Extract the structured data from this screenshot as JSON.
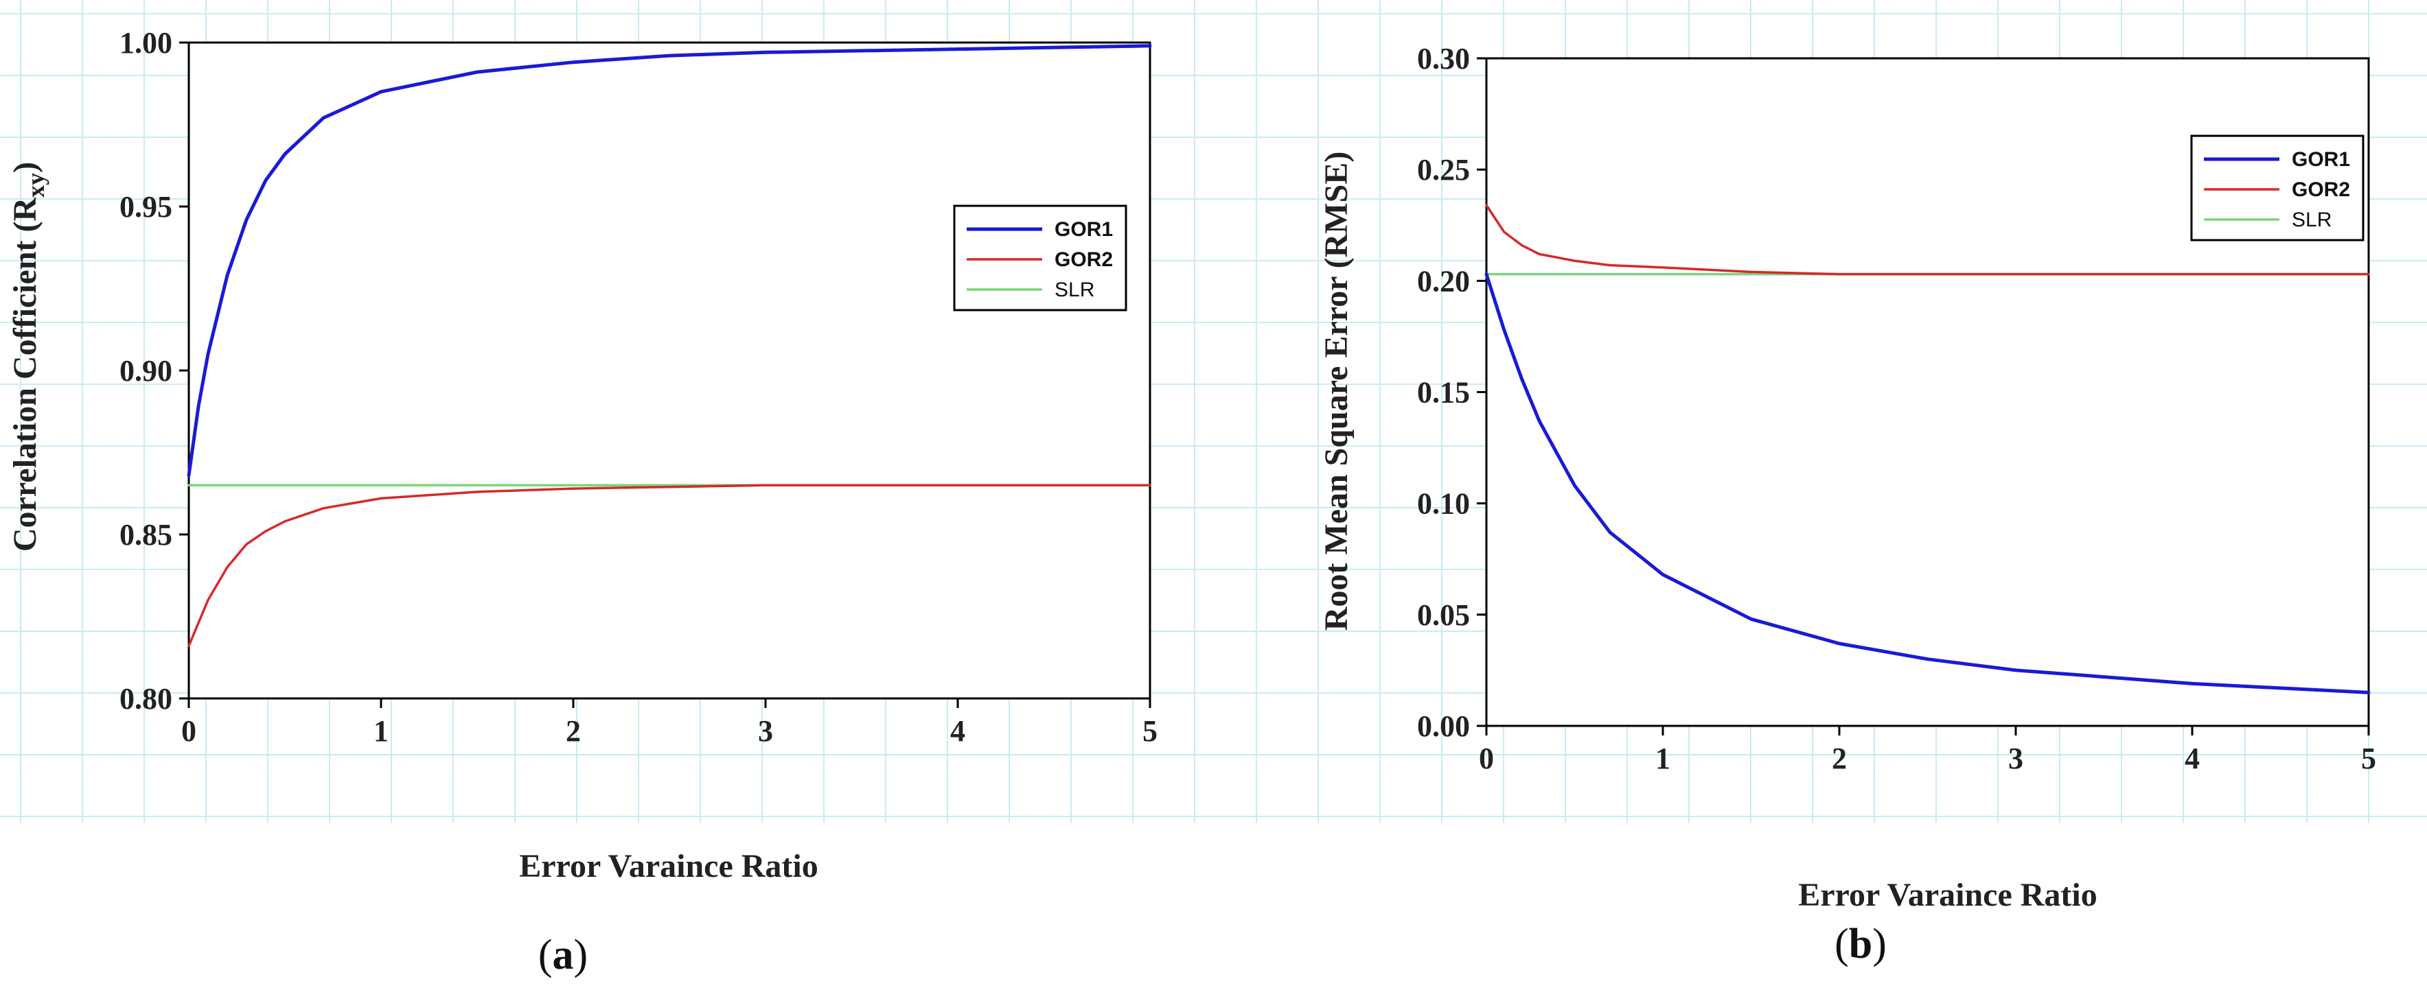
{
  "colors": {
    "gor1": "#1a1ad6",
    "gor2": "#d42a2a",
    "slr": "#7ad67a",
    "grid": "#c9ecf4",
    "axis": "#000000"
  },
  "chart_data": [
    {
      "type": "line",
      "panel_label": "a",
      "title": "",
      "xlabel": "Error Varaince Ratio",
      "ylabel": "Correlation Cofficient (R",
      "ylabel_sub": "xy",
      "ylabel_close": ")",
      "xlim": [
        0,
        5
      ],
      "ylim": [
        0.8,
        1.0
      ],
      "x_ticks": [
        "0",
        "1",
        "2",
        "3",
        "4",
        "5"
      ],
      "y_ticks": [
        "0.80",
        "0.85",
        "0.90",
        "0.95",
        "1.00"
      ],
      "legend_position": "top-right",
      "series": [
        {
          "name": "GOR1",
          "color_key": "gor1",
          "x": [
            0,
            0.05,
            0.1,
            0.2,
            0.3,
            0.4,
            0.5,
            0.7,
            1.0,
            1.5,
            2.0,
            2.5,
            3.0,
            4.0,
            5.0
          ],
          "y": [
            0.868,
            0.889,
            0.905,
            0.929,
            0.946,
            0.958,
            0.966,
            0.977,
            0.985,
            0.991,
            0.994,
            0.996,
            0.997,
            0.998,
            0.999
          ]
        },
        {
          "name": "GOR2",
          "color_key": "gor2",
          "x": [
            0,
            0.1,
            0.2,
            0.3,
            0.4,
            0.5,
            0.7,
            1.0,
            1.5,
            2.0,
            3.0,
            4.0,
            5.0
          ],
          "y": [
            0.816,
            0.83,
            0.84,
            0.847,
            0.851,
            0.854,
            0.858,
            0.861,
            0.863,
            0.864,
            0.865,
            0.865,
            0.865
          ]
        },
        {
          "name": "SLR",
          "color_key": "slr",
          "x": [
            0,
            5
          ],
          "y": [
            0.865,
            0.865
          ]
        }
      ]
    },
    {
      "type": "line",
      "panel_label": "b",
      "title": "",
      "xlabel": "Error Varaince Ratio",
      "ylabel": "Root Mean Square Error (RMSE)",
      "xlim": [
        0,
        5
      ],
      "ylim": [
        0.0,
        0.3
      ],
      "x_ticks": [
        "0",
        "1",
        "2",
        "3",
        "4",
        "5"
      ],
      "y_ticks": [
        "0.00",
        "0.05",
        "0.10",
        "0.15",
        "0.20",
        "0.25",
        "0.30"
      ],
      "legend_position": "top-right",
      "series": [
        {
          "name": "GOR1",
          "color_key": "gor1",
          "x": [
            0,
            0.1,
            0.2,
            0.3,
            0.5,
            0.7,
            1.0,
            1.5,
            2.0,
            2.5,
            3.0,
            3.5,
            4.0,
            4.5,
            5.0
          ],
          "y": [
            0.203,
            0.178,
            0.156,
            0.137,
            0.108,
            0.087,
            0.068,
            0.048,
            0.037,
            0.03,
            0.025,
            0.022,
            0.019,
            0.017,
            0.015
          ]
        },
        {
          "name": "GOR2",
          "color_key": "gor2",
          "x": [
            0,
            0.1,
            0.2,
            0.3,
            0.5,
            0.7,
            1.0,
            1.5,
            2.0,
            3.0,
            4.0,
            5.0
          ],
          "y": [
            0.234,
            0.222,
            0.216,
            0.212,
            0.209,
            0.207,
            0.206,
            0.204,
            0.203,
            0.203,
            0.203,
            0.203
          ]
        },
        {
          "name": "SLR",
          "color_key": "slr",
          "x": [
            0,
            5
          ],
          "y": [
            0.203,
            0.203
          ]
        }
      ]
    }
  ]
}
